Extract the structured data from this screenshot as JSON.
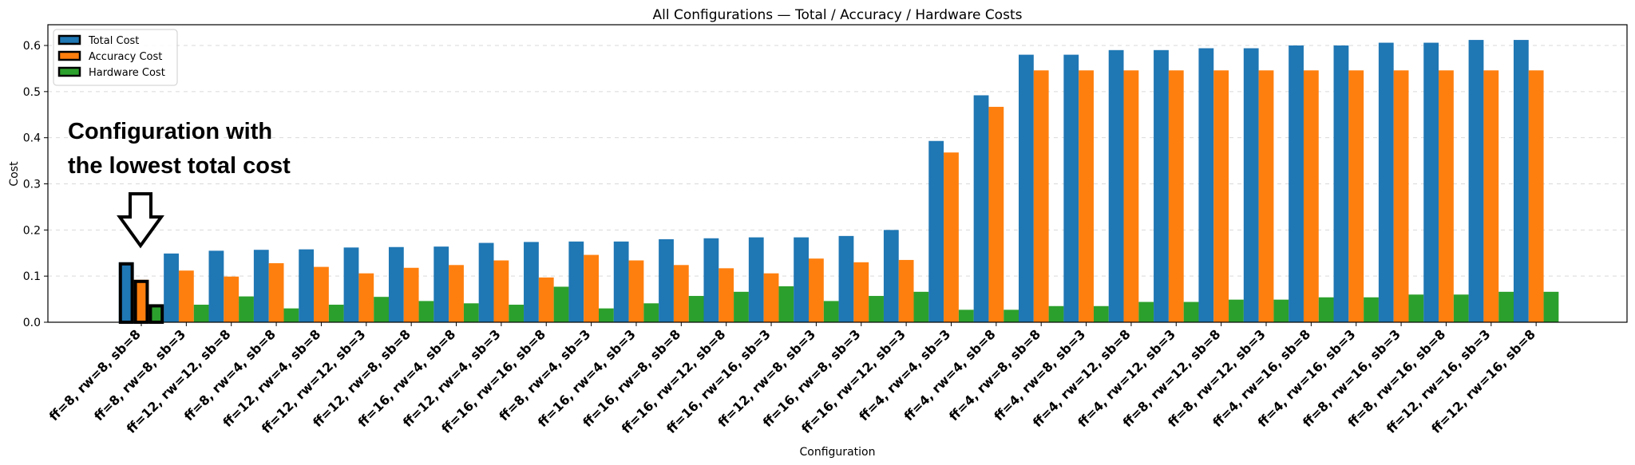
{
  "chart_data": {
    "type": "bar",
    "title": "All Configurations — Total / Accuracy / Hardware Costs",
    "xlabel": "Configuration",
    "ylabel": "Cost",
    "ylim": [
      0,
      0.645
    ],
    "yticks": [
      "0.0",
      "0.1",
      "0.2",
      "0.3",
      "0.4",
      "0.5",
      "0.6"
    ],
    "grid": "horizontal dashed",
    "legend_position": "top-left",
    "categories": [
      "ff=8, rw=8, sb=8",
      "ff=8, rw=8, sb=3",
      "ff=12, rw=12, sb=8",
      "ff=8, rw=4, sb=8",
      "ff=12, rw=4, sb=8",
      "ff=12, rw=12, sb=3",
      "ff=12, rw=8, sb=8",
      "ff=16, rw=4, sb=8",
      "ff=12, rw=4, sb=3",
      "ff=16, rw=16, sb=8",
      "ff=8, rw=4, sb=3",
      "ff=16, rw=4, sb=3",
      "ff=16, rw=8, sb=8",
      "ff=16, rw=12, sb=8",
      "ff=16, rw=16, sb=3",
      "ff=12, rw=8, sb=3",
      "ff=16, rw=8, sb=3",
      "ff=16, rw=12, sb=3",
      "ff=4, rw=4, sb=3",
      "ff=4, rw=4, sb=8",
      "ff=4, rw=8, sb=8",
      "ff=4, rw=8, sb=3",
      "ff=4, rw=12, sb=8",
      "ff=4, rw=12, sb=3",
      "ff=8, rw=12, sb=8",
      "ff=8, rw=12, sb=3",
      "ff=4, rw=16, sb=8",
      "ff=4, rw=16, sb=3",
      "ff=8, rw=16, sb=3",
      "ff=8, rw=16, sb=8",
      "ff=12, rw=16, sb=3",
      "ff=12, rw=16, sb=8"
    ],
    "series": [
      {
        "name": "Total Cost",
        "color": "#1f77b4",
        "values": [
          0.13,
          0.149,
          0.155,
          0.157,
          0.158,
          0.162,
          0.163,
          0.164,
          0.172,
          0.174,
          0.175,
          0.175,
          0.18,
          0.182,
          0.184,
          0.184,
          0.187,
          0.2,
          0.393,
          0.492,
          0.58,
          0.58,
          0.59,
          0.59,
          0.594,
          0.594,
          0.6,
          0.6,
          0.606,
          0.606,
          0.612,
          0.612
        ]
      },
      {
        "name": "Accuracy Cost",
        "color": "#ff7f0e",
        "values": [
          0.092,
          0.112,
          0.099,
          0.128,
          0.12,
          0.106,
          0.118,
          0.124,
          0.134,
          0.097,
          0.146,
          0.134,
          0.124,
          0.117,
          0.106,
          0.138,
          0.13,
          0.135,
          0.368,
          0.467,
          0.546,
          0.546,
          0.546,
          0.546,
          0.546,
          0.546,
          0.546,
          0.546,
          0.546,
          0.546,
          0.546,
          0.546
        ]
      },
      {
        "name": "Hardware Cost",
        "color": "#2ca02c",
        "values": [
          0.039,
          0.038,
          0.056,
          0.03,
          0.038,
          0.055,
          0.046,
          0.041,
          0.038,
          0.077,
          0.03,
          0.041,
          0.057,
          0.066,
          0.078,
          0.046,
          0.057,
          0.066,
          0.027,
          0.027,
          0.035,
          0.035,
          0.044,
          0.044,
          0.049,
          0.049,
          0.054,
          0.054,
          0.06,
          0.06,
          0.066,
          0.066
        ]
      }
    ],
    "highlighted_index": 0,
    "annotation": {
      "line1": "Configuration with",
      "line2": "the lowest total cost"
    }
  }
}
